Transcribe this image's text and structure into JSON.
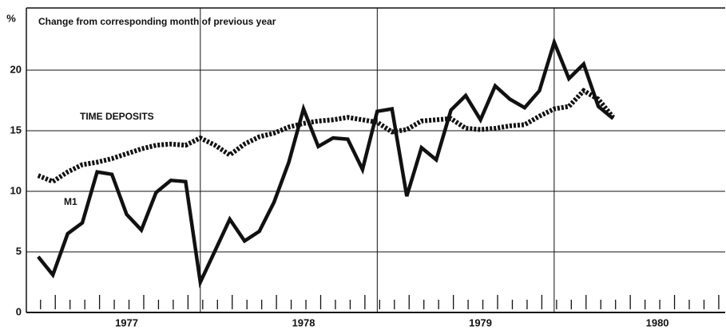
{
  "chart_data": {
    "type": "line",
    "subtitle": "Change from corresponding month of previous year",
    "ylabel": "%",
    "x": [
      0,
      1,
      2,
      3,
      4,
      5,
      6,
      7,
      8,
      9,
      10,
      11,
      12,
      13,
      14,
      15,
      16,
      17,
      18,
      19,
      20,
      21,
      22,
      23,
      24,
      25,
      26,
      27,
      28,
      29,
      30,
      31,
      32,
      33,
      34,
      35,
      36,
      37,
      38,
      39
    ],
    "series": [
      {
        "name": "M1",
        "color": "#111111",
        "style": "solid",
        "values": [
          4.6,
          3.1,
          6.5,
          7.4,
          11.6,
          11.4,
          8.1,
          6.8,
          9.9,
          10.9,
          10.8,
          2.5,
          5.1,
          7.7,
          5.9,
          6.7,
          9.1,
          12.4,
          16.8,
          13.7,
          14.4,
          14.3,
          11.8,
          16.6,
          16.8,
          9.6,
          13.6,
          12.6,
          16.7,
          17.9,
          15.9,
          18.7,
          17.6,
          16.9,
          18.3,
          22.3,
          19.3,
          20.5,
          17.0,
          16.0
        ]
      },
      {
        "name": "TIME DEPOSITS",
        "color": "#111111",
        "style": "dotted",
        "values": [
          11.3,
          10.8,
          11.6,
          12.2,
          12.4,
          12.7,
          13.1,
          13.5,
          13.8,
          13.9,
          13.8,
          14.4,
          13.8,
          13.0,
          13.9,
          14.5,
          14.8,
          15.3,
          15.6,
          15.8,
          15.9,
          16.1,
          15.9,
          15.7,
          14.9,
          15.1,
          15.8,
          15.9,
          16.0,
          15.2,
          15.1,
          15.2,
          15.4,
          15.5,
          16.2,
          16.8,
          17.0,
          18.3,
          17.6,
          16.1
        ]
      }
    ],
    "xlim": [
      -0.8,
      46.6
    ],
    "xticks": [
      {
        "value": 6,
        "label": "1977"
      },
      {
        "value": 18,
        "label": "1978"
      },
      {
        "value": 30,
        "label": "1979"
      },
      {
        "value": 42,
        "label": "1980"
      }
    ],
    "vlines": [
      11,
      23,
      35
    ],
    "ylim": [
      0,
      25
    ],
    "yticks": [
      0,
      5,
      10,
      15,
      20
    ],
    "grid": true
  }
}
